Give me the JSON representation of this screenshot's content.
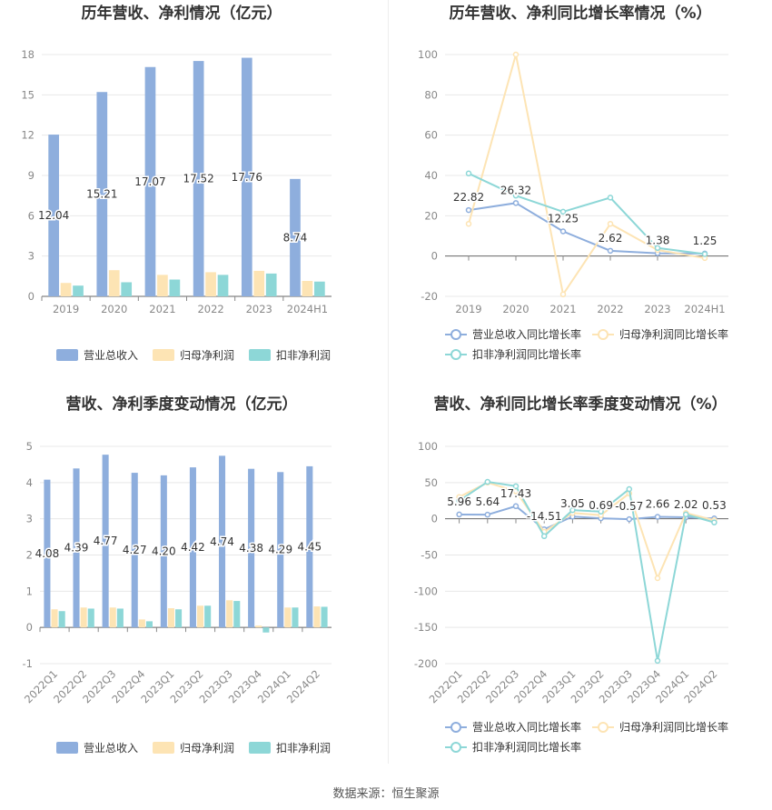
{
  "source_text": "数据来源：恒生聚源",
  "chart_data": [
    {
      "type": "bar",
      "title": "历年营收、净利情况（亿元）",
      "categories": [
        "2019",
        "2020",
        "2021",
        "2022",
        "2023",
        "2024H1"
      ],
      "ylim": [
        0,
        18
      ],
      "yticks": [
        0,
        3,
        6,
        9,
        12,
        15,
        18
      ],
      "series": [
        {
          "name": "营业总收入",
          "color": "#8eaedd",
          "values": [
            12.04,
            15.21,
            17.07,
            17.52,
            17.76,
            8.74
          ],
          "labels": [
            "12.04",
            "15.21",
            "17.07",
            "17.52",
            "17.76",
            "8.74"
          ]
        },
        {
          "name": "归母净利润",
          "color": "#fde4b4",
          "values": [
            1.0,
            1.95,
            1.6,
            1.8,
            1.9,
            1.15
          ]
        },
        {
          "name": "扣非净利润",
          "color": "#8dd7d7",
          "values": [
            0.8,
            1.05,
            1.25,
            1.6,
            1.7,
            1.1
          ]
        }
      ]
    },
    {
      "type": "line",
      "title": "历年营收、净利同比增长率情况（%）",
      "categories": [
        "2019",
        "2020",
        "2021",
        "2022",
        "2023",
        "2024H1"
      ],
      "ylim": [
        -20,
        100
      ],
      "yticks": [
        -20,
        0,
        20,
        40,
        60,
        80,
        100
      ],
      "series": [
        {
          "name": "营业总收入同比增长率",
          "color": "#8eaedd",
          "values": [
            22.82,
            26.32,
            12.25,
            2.62,
            1.38,
            1.25
          ],
          "labels": [
            "22.82",
            "26.32",
            "12.25",
            "2.62",
            "1.38",
            "1.25"
          ]
        },
        {
          "name": "归母净利润同比增长率",
          "color": "#fde4b4",
          "values": [
            16,
            100,
            -19,
            16,
            3,
            -1
          ]
        },
        {
          "name": "扣非净利润同比增长率",
          "color": "#8dd7d7",
          "values": [
            41,
            30,
            22,
            29,
            4,
            1
          ]
        }
      ]
    },
    {
      "type": "bar",
      "title": "营收、净利季度变动情况（亿元）",
      "categories": [
        "2022Q1",
        "2022Q2",
        "2022Q3",
        "2022Q4",
        "2023Q1",
        "2023Q2",
        "2023Q3",
        "2023Q4",
        "2024Q1",
        "2024Q2"
      ],
      "ylim": [
        -1,
        5
      ],
      "yticks": [
        -1,
        0,
        1,
        2,
        3,
        4,
        5
      ],
      "series": [
        {
          "name": "营业总收入",
          "color": "#8eaedd",
          "values": [
            4.08,
            4.39,
            4.77,
            4.27,
            4.2,
            4.42,
            4.74,
            4.38,
            4.29,
            4.45
          ],
          "labels": [
            "4.08",
            "4.39",
            "4.77",
            "4.27",
            "4.20",
            "4.42",
            "4.74",
            "4.38",
            "4.29",
            "4.45"
          ]
        },
        {
          "name": "归母净利润",
          "color": "#fde4b4",
          "values": [
            0.5,
            0.55,
            0.55,
            0.22,
            0.53,
            0.6,
            0.75,
            0.05,
            0.55,
            0.58
          ]
        },
        {
          "name": "扣非净利润",
          "color": "#8dd7d7",
          "values": [
            0.45,
            0.52,
            0.52,
            0.17,
            0.5,
            0.6,
            0.73,
            -0.14,
            0.55,
            0.57
          ]
        }
      ]
    },
    {
      "type": "line",
      "title": "营收、净利同比增长率季度变动情况（%）",
      "categories": [
        "2022Q1",
        "2022Q2",
        "2022Q3",
        "2022Q4",
        "2023Q1",
        "2023Q2",
        "2023Q3",
        "2023Q4",
        "2024Q1",
        "2024Q2"
      ],
      "ylim": [
        -200,
        100
      ],
      "yticks": [
        -200,
        -150,
        -100,
        -50,
        0,
        50,
        100
      ],
      "series": [
        {
          "name": "营业总收入同比增长率",
          "color": "#8eaedd",
          "values": [
            5.96,
            5.64,
            17.43,
            -14.51,
            3.05,
            0.69,
            -0.57,
            2.66,
            2.02,
            0.53
          ],
          "labels": [
            "5.96",
            "5.64",
            "17.43",
            "-14.51",
            "3.05",
            "0.69",
            "-0.57",
            "2.66",
            "2.02",
            "0.53"
          ]
        },
        {
          "name": "归母净利润同比增长率",
          "color": "#fde4b4",
          "values": [
            30,
            50,
            38,
            -18,
            8,
            5,
            35,
            -82,
            8,
            -2
          ]
        },
        {
          "name": "扣非净利润同比增长率",
          "color": "#8dd7d7",
          "values": [
            25,
            51,
            45,
            -24,
            12,
            10,
            41,
            -196,
            6,
            -5
          ]
        }
      ]
    }
  ]
}
